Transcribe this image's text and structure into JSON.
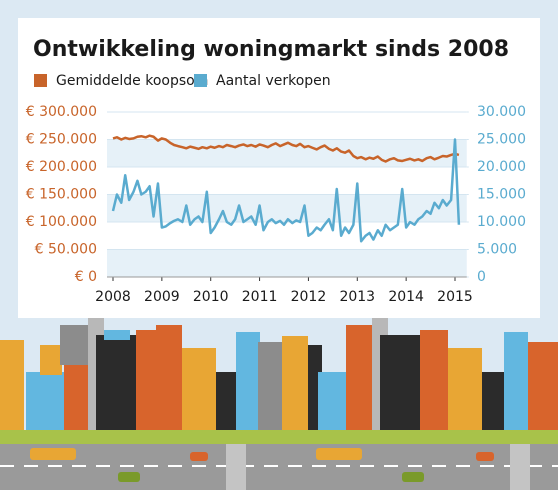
{
  "chart_data": {
    "type": "line",
    "title": "Ontwikkeling woningmarkt sinds 2008",
    "x": [
      2008,
      2008.08,
      2008.17,
      2008.25,
      2008.33,
      2008.42,
      2008.5,
      2008.58,
      2008.67,
      2008.75,
      2008.83,
      2008.92,
      2009,
      2009.08,
      2009.17,
      2009.25,
      2009.33,
      2009.42,
      2009.5,
      2009.58,
      2009.67,
      2009.75,
      2009.83,
      2009.92,
      2010,
      2010.08,
      2010.17,
      2010.25,
      2010.33,
      2010.42,
      2010.5,
      2010.58,
      2010.67,
      2010.75,
      2010.83,
      2010.92,
      2011,
      2011.08,
      2011.17,
      2011.25,
      2011.33,
      2011.42,
      2011.5,
      2011.58,
      2011.67,
      2011.75,
      2011.83,
      2011.92,
      2012,
      2012.08,
      2012.17,
      2012.25,
      2012.33,
      2012.42,
      2012.5,
      2012.58,
      2012.67,
      2012.75,
      2012.83,
      2012.92,
      2013,
      2013.08,
      2013.17,
      2013.25,
      2013.33,
      2013.42,
      2013.5,
      2013.58,
      2013.67,
      2013.75,
      2013.83,
      2013.92,
      2014,
      2014.08,
      2014.17,
      2014.25,
      2014.33,
      2014.42,
      2014.5,
      2014.58,
      2014.67,
      2014.75,
      2014.83,
      2014.92,
      2015,
      2015.08
    ],
    "series": [
      {
        "name": "Gemiddelde koopsom",
        "color": "#c8642a",
        "values": [
          252000,
          254000,
          250000,
          253000,
          251000,
          252000,
          255000,
          256000,
          254000,
          257000,
          255000,
          248000,
          252000,
          250000,
          244000,
          240000,
          238000,
          236000,
          234000,
          237000,
          235000,
          233000,
          236000,
          234000,
          237000,
          235000,
          238000,
          236000,
          240000,
          238000,
          236000,
          239000,
          241000,
          238000,
          240000,
          237000,
          241000,
          239000,
          236000,
          240000,
          243000,
          238000,
          241000,
          244000,
          240000,
          238000,
          242000,
          236000,
          238000,
          235000,
          232000,
          236000,
          239000,
          233000,
          230000,
          234000,
          228000,
          226000,
          230000,
          220000,
          216000,
          218000,
          214000,
          217000,
          215000,
          219000,
          213000,
          210000,
          214000,
          216000,
          212000,
          211000,
          213000,
          215000,
          212000,
          214000,
          211000,
          216000,
          218000,
          214000,
          217000,
          220000,
          219000,
          222000,
          224000,
          222000
        ]
      },
      {
        "name": "Aantal verkopen",
        "color": "#5aabcf",
        "axis": "y2",
        "values": [
          12000,
          15000,
          13500,
          18500,
          14000,
          15500,
          17500,
          15000,
          15500,
          16500,
          11000,
          17000,
          9000,
          9200,
          9800,
          10200,
          10500,
          10000,
          13000,
          9500,
          10500,
          11000,
          10000,
          15500,
          8000,
          9000,
          10500,
          12000,
          10000,
          9500,
          10500,
          13000,
          10000,
          10500,
          11000,
          9500,
          13000,
          8500,
          10000,
          10500,
          9800,
          10200,
          9500,
          10500,
          9800,
          10300,
          10000,
          13000,
          7500,
          8000,
          9000,
          8500,
          9500,
          10500,
          8500,
          16000,
          7500,
          9000,
          8000,
          9500,
          17000,
          6500,
          7500,
          8000,
          6800,
          8500,
          7500,
          9500,
          8500,
          9000,
          9500,
          16000,
          9000,
          10000,
          9500,
          10500,
          11000,
          12000,
          11500,
          13500,
          12500,
          14000,
          13000,
          14000,
          25000,
          9500
        ]
      }
    ],
    "xlim": [
      2008,
      2015.2
    ],
    "xticks": [
      2008,
      2009,
      2010,
      2011,
      2012,
      2013,
      2014,
      2015
    ],
    "ylim": [
      0,
      300000
    ],
    "yticks": [
      {
        "value": 0,
        "label": "€ 0"
      },
      {
        "value": 50000,
        "label": "€ 50.000"
      },
      {
        "value": 100000,
        "label": "€ 100.000"
      },
      {
        "value": 150000,
        "label": "€ 150.000"
      },
      {
        "value": 200000,
        "label": "€ 200.000"
      },
      {
        "value": 250000,
        "label": "€ 250.000"
      },
      {
        "value": 300000,
        "label": "€ 300.000"
      }
    ],
    "y2lim": [
      0,
      30000
    ],
    "y2ticks": [
      0,
      {
        "value": 5000,
        "label": "5.000"
      },
      {
        "value": 10000,
        "label": "10.000"
      },
      {
        "value": 15000,
        "label": "15.000"
      },
      {
        "value": 20000,
        "label": "20.000"
      },
      {
        "value": 25000,
        "label": "25.000"
      },
      {
        "value": 30000,
        "label": "30.000"
      }
    ],
    "grid": true
  }
}
